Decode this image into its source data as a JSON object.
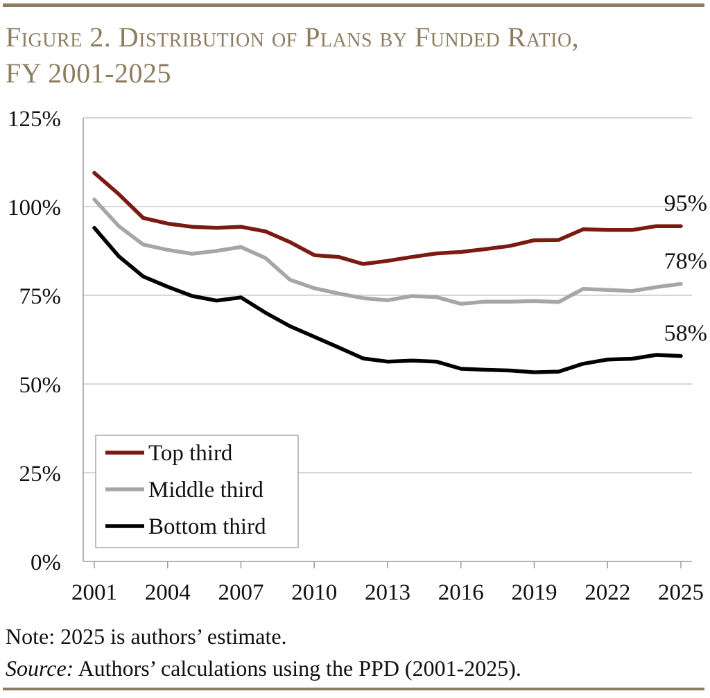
{
  "title_line1": "Figure 2. Distribution of Plans by Funded Ratio,",
  "title_line2": "FY 2001-2025",
  "note": "Note: 2025 is authors’ estimate.",
  "source_label": "Source:",
  "source_text": " Authors’ calculations using the PPD (2001-2025).",
  "colors": {
    "top": "#7b1a12",
    "middle": "#a6a6a6",
    "bottom": "#000000",
    "rule": "#8c7d5f",
    "grid": "#bfbfbf"
  },
  "chart_data": {
    "type": "line",
    "title": "Distribution of Plans by Funded Ratio, FY 2001-2025",
    "xlabel": "",
    "ylabel": "",
    "x": [
      2001,
      2002,
      2003,
      2004,
      2005,
      2006,
      2007,
      2008,
      2009,
      2010,
      2011,
      2012,
      2013,
      2014,
      2015,
      2016,
      2017,
      2018,
      2019,
      2020,
      2021,
      2022,
      2023,
      2024,
      2025
    ],
    "xticks": [
      "2001",
      "2004",
      "2007",
      "2010",
      "2013",
      "2016",
      "2019",
      "2022",
      "2025"
    ],
    "ylim": [
      0,
      125
    ],
    "yticks": [
      "0%",
      "25%",
      "50%",
      "75%",
      "100%",
      "125%"
    ],
    "legend_position": "bottom-left",
    "series": [
      {
        "name": "Top third",
        "key": "top",
        "values": [
          109.5,
          103.5,
          96.8,
          95.2,
          94.3,
          94.0,
          94.3,
          93.0,
          90.0,
          86.3,
          85.8,
          83.8,
          84.7,
          85.8,
          86.8,
          87.2,
          88.0,
          88.9,
          90.5,
          90.6,
          93.6,
          93.4,
          93.4,
          94.5,
          94.5
        ],
        "end_label": "95%"
      },
      {
        "name": "Middle third",
        "key": "middle",
        "values": [
          102.0,
          94.5,
          89.3,
          87.8,
          86.7,
          87.5,
          88.6,
          85.5,
          79.4,
          77.0,
          75.5,
          74.2,
          73.6,
          74.8,
          74.5,
          72.6,
          73.2,
          73.2,
          73.4,
          73.1,
          76.8,
          76.5,
          76.2,
          77.3,
          78.2
        ],
        "end_label": "78%"
      },
      {
        "name": "Bottom third",
        "key": "bottom",
        "values": [
          94.0,
          86.0,
          80.3,
          77.4,
          74.8,
          73.5,
          74.4,
          70.1,
          66.3,
          63.3,
          60.3,
          57.2,
          56.3,
          56.6,
          56.3,
          54.3,
          54.0,
          53.8,
          53.3,
          53.5,
          55.7,
          56.9,
          57.1,
          58.2,
          57.9
        ],
        "end_label": "58%"
      }
    ]
  }
}
